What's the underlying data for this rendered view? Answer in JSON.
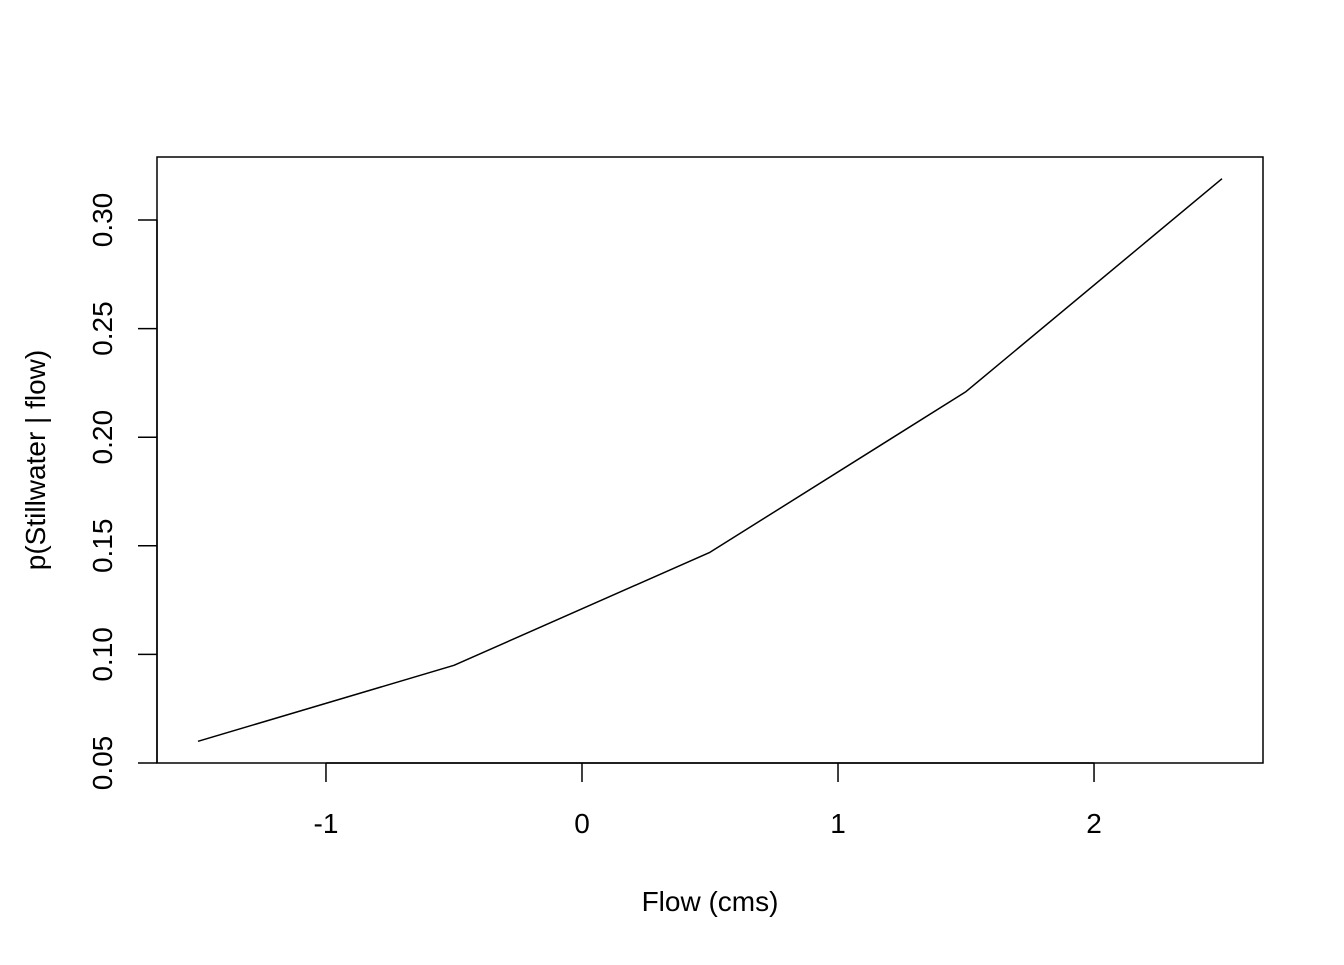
{
  "chart_data": {
    "type": "line",
    "title": "",
    "xlabel": "Flow (cms)",
    "ylabel": "p(Stillwater | flow)",
    "xlim": [
      -1.66,
      2.66
    ],
    "ylim": [
      0.05,
      0.329
    ],
    "x_ticks": [
      -1,
      0,
      1,
      2
    ],
    "x_tick_labels": [
      "-1",
      "0",
      "1",
      "2"
    ],
    "y_ticks": [
      0.05,
      0.1,
      0.15,
      0.2,
      0.25,
      0.3
    ],
    "y_tick_labels": [
      "0.05",
      "0.10",
      "0.15",
      "0.20",
      "0.25",
      "0.30"
    ],
    "grid": false,
    "series": [
      {
        "x": [
          -1.5,
          -0.5,
          0.5,
          1.5,
          2.5
        ],
        "y": [
          0.06,
          0.095,
          0.147,
          0.221,
          0.319
        ],
        "color": "#000000"
      }
    ]
  }
}
